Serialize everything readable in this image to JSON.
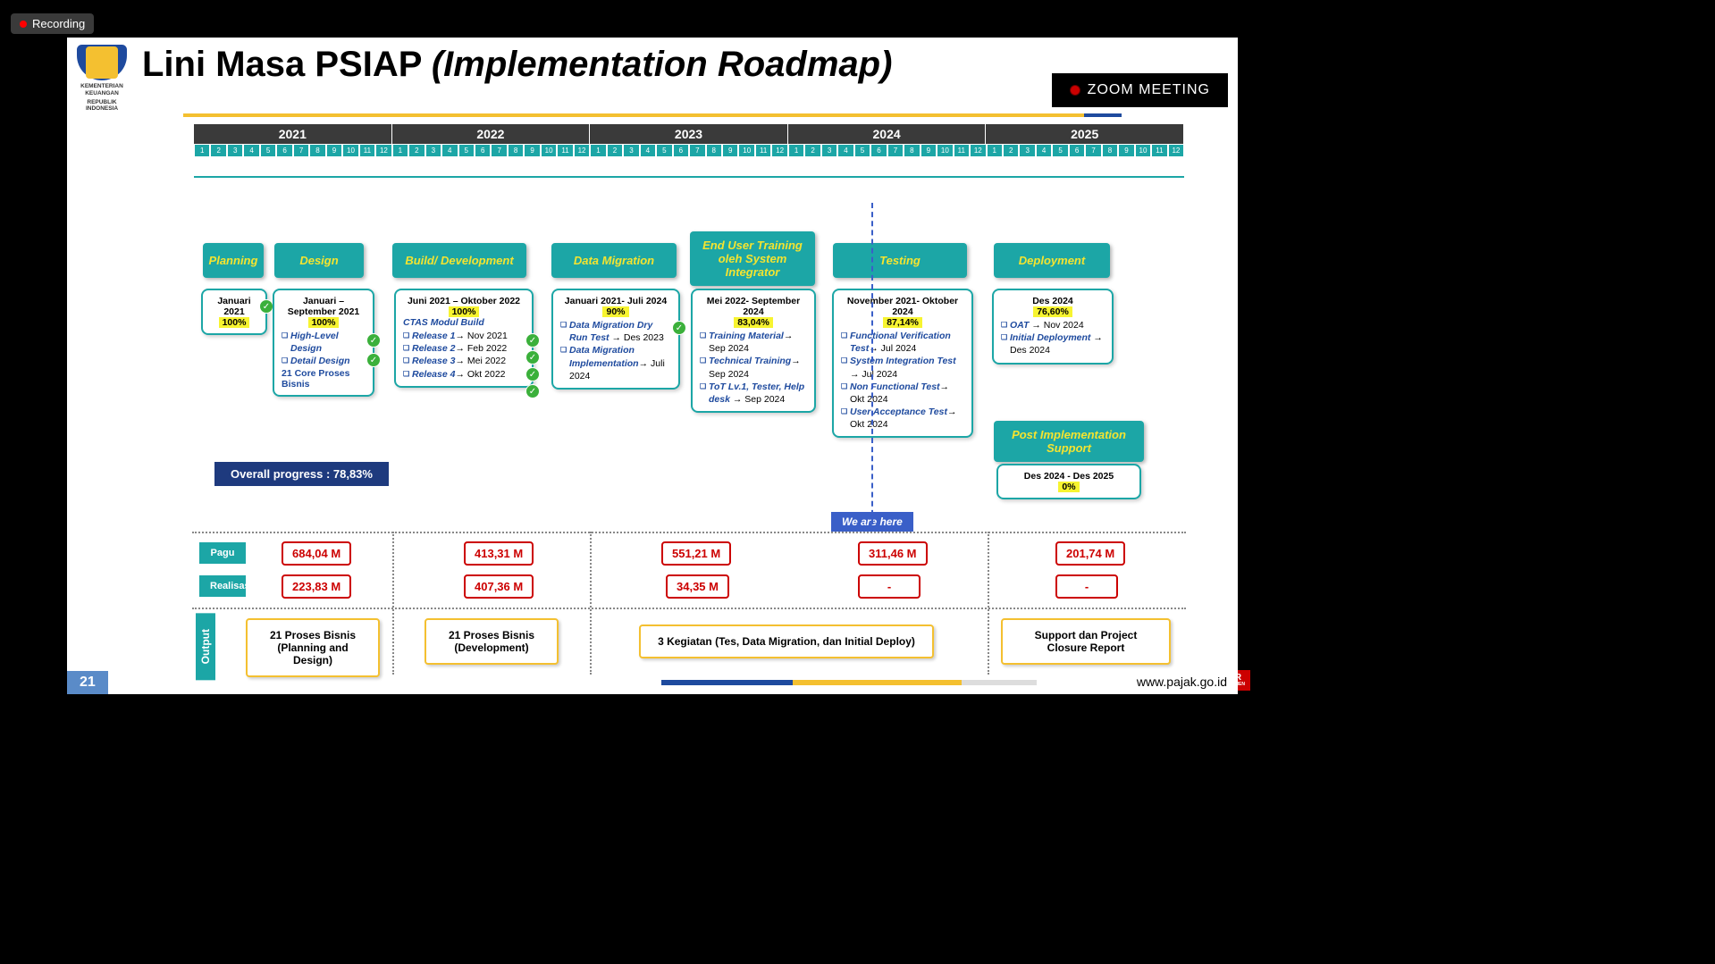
{
  "recording": "Recording",
  "zoom": "ZOOM MEETING",
  "logo": {
    "line1": "KEMENTERIAN KEUANGAN",
    "line2": "REPUBLIK INDONESIA"
  },
  "title": {
    "main": "Lini Masa PSIAP ",
    "italic": "(Implementation Roadmap)"
  },
  "years": [
    "2021",
    "2022",
    "2023",
    "2024",
    "2025"
  ],
  "months": [
    "1",
    "2",
    "3",
    "4",
    "5",
    "6",
    "7",
    "8",
    "9",
    "10",
    "11",
    "12"
  ],
  "overall": "Overall progress : 78,83%",
  "wehere": "We are here",
  "phases": {
    "planning": {
      "head": "Planning",
      "date": "Januari 2021",
      "pct": "100%"
    },
    "design": {
      "head": "Design",
      "date": "Januari – September 2021",
      "pct": "100%",
      "items": [
        {
          "t": "High-Level Design"
        },
        {
          "t": "Detail Design"
        }
      ],
      "extra": "21 Core Proses Bisnis"
    },
    "build": {
      "head": "Build/ Development",
      "date": "Juni 2021 – Oktober 2022",
      "pct": "100%",
      "sub": "CTAS Modul Build",
      "items": [
        {
          "t": "Release 1",
          "d": "Nov 2021"
        },
        {
          "t": "Release 2",
          "d": "Feb 2022"
        },
        {
          "t": "Release 3",
          "d": "Mei 2022"
        },
        {
          "t": "Release 4",
          "d": "Okt 2022"
        }
      ]
    },
    "migration": {
      "head": "Data Migration",
      "date": "Januari 2021- Juli 2024",
      "pct": "90%",
      "items": [
        {
          "t": "Data Migration Dry Run Test",
          "d": "Des 2023"
        },
        {
          "t": "Data Migration Implementation",
          "d": "Juli 2024"
        }
      ]
    },
    "training": {
      "head": "End User Training oleh System Integrator",
      "date": "Mei 2022- September 2024",
      "pct": "83,04%",
      "items": [
        {
          "t": "Training Material",
          "d": "Sep 2024"
        },
        {
          "t": "Technical Training",
          "d": "Sep 2024"
        },
        {
          "t": "ToT Lv.1, Tester, Help desk",
          "d": "Sep 2024"
        }
      ]
    },
    "testing": {
      "head": "Testing",
      "date": "November 2021- Oktober 2024",
      "pct": "87,14%",
      "items": [
        {
          "t": "Functional Verification Test",
          "d": "Jul 2024"
        },
        {
          "t": "System Integration Test",
          "d": "Jul 2024"
        },
        {
          "t": "Non Functional Test",
          "d": "Okt 2024"
        },
        {
          "t": "User Acceptance Test",
          "d": "Okt 2024"
        }
      ]
    },
    "deploy": {
      "head": "Deployment",
      "date": "Des 2024",
      "pct": "76,60%",
      "items": [
        {
          "t": "OAT",
          "d": "Nov 2024"
        },
        {
          "t": "Initial Deployment",
          "d": "Des 2024"
        }
      ]
    },
    "post": {
      "head": "Post Implementation Support",
      "date": "Des 2024 - Des 2025",
      "pct": "0%"
    }
  },
  "metrics": {
    "pagu_label": "Pagu",
    "realisasi_label": "Realisasi",
    "output_label": "Output",
    "pagu": [
      "684,04 M",
      "413,31 M",
      "551,21 M",
      "311,46 M",
      "201,74 M"
    ],
    "realisasi": [
      "223,83 M",
      "407,36 M",
      "34,35 M",
      "-",
      "-"
    ],
    "output": [
      "21 Proses Bisnis (Planning and Design)",
      "21 Proses Bisnis (Development)",
      "3 Kegiatan (Tes, Data Migration, dan Initial Deploy)",
      "Support dan Project Closure Report"
    ]
  },
  "page": "21",
  "url": "www.pajak.go.id",
  "tvr": "TVR",
  "tvr2": "PARLEMEN",
  "colors": {
    "teal": "#1ca6a6",
    "yellow": "#f4c030",
    "hl": "#f7f430",
    "red": "#cc0000",
    "navy": "#1e4a9e"
  }
}
